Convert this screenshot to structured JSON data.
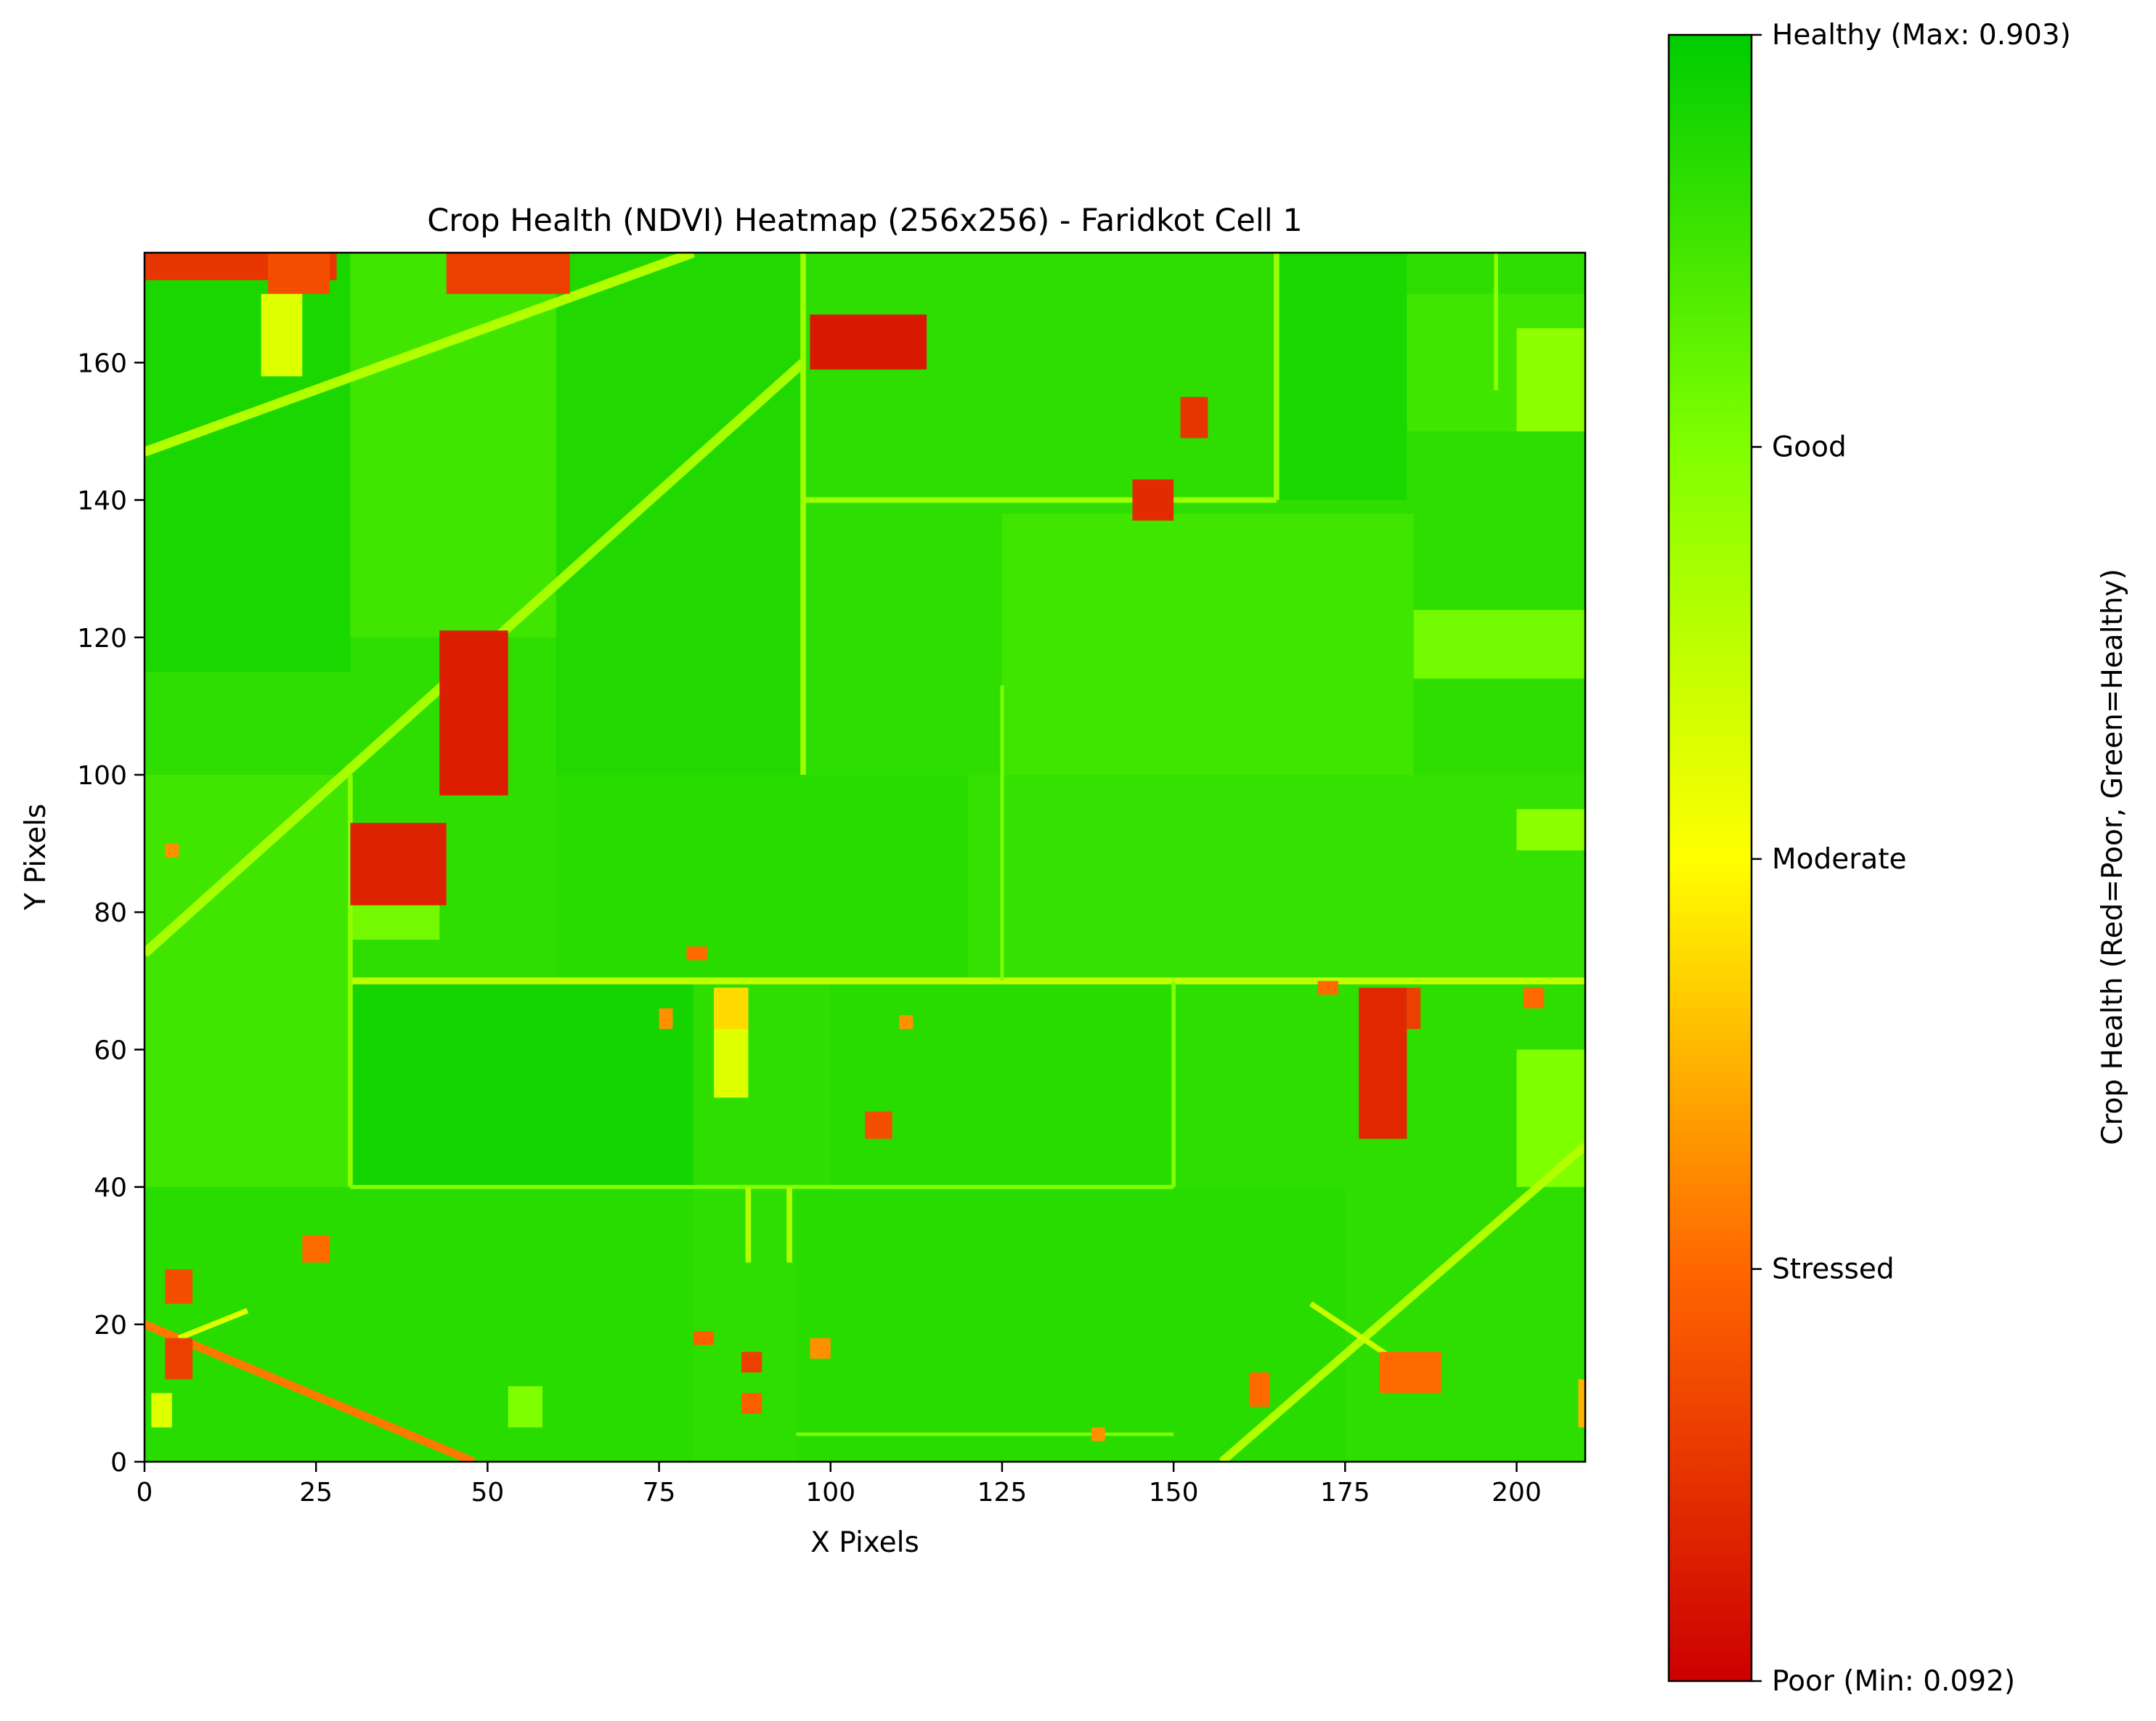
{
  "chart_data": {
    "type": "heatmap",
    "title": "Crop Health (NDVI) Heatmap (256x256) - Faridkot Cell 1",
    "xlabel": "X Pixels",
    "ylabel": "Y Pixels",
    "xlim": [
      0,
      210
    ],
    "ylim": [
      0,
      176
    ],
    "x_ticks": [
      0,
      25,
      50,
      75,
      100,
      125,
      150,
      175,
      200
    ],
    "y_ticks": [
      0,
      20,
      40,
      60,
      80,
      100,
      120,
      140,
      160
    ],
    "grid": false,
    "colormap": [
      "#cc0000",
      "#ff6600",
      "#ffff00",
      "#80ff00",
      "#00cc00"
    ],
    "value_range": [
      0.092,
      0.903
    ],
    "background_value": 0.83,
    "colorbar": {
      "label": "Crop Health (Red=Poor, Green=Healthy)",
      "ticks": [
        {
          "value": 0.092,
          "label": "Poor (Min: 0.092)"
        },
        {
          "value": 0.295,
          "label": "Stressed"
        },
        {
          "value": 0.497,
          "label": "Moderate"
        },
        {
          "value": 0.7,
          "label": "Good"
        },
        {
          "value": 0.903,
          "label": "Healthy (Max: 0.903)"
        }
      ]
    },
    "field_patches": [
      {
        "x": [
          0,
          30
        ],
        "y": [
          115,
          176
        ],
        "ndvi": 0.86
      },
      {
        "x": [
          30,
          60
        ],
        "y": [
          120,
          176
        ],
        "ndvi": 0.8
      },
      {
        "x": [
          60,
          96
        ],
        "y": [
          100,
          176
        ],
        "ndvi": 0.85
      },
      {
        "x": [
          96,
          165
        ],
        "y": [
          138,
          176
        ],
        "ndvi": 0.83
      },
      {
        "x": [
          165,
          184
        ],
        "y": [
          140,
          176
        ],
        "ndvi": 0.86
      },
      {
        "x": [
          184,
          210
        ],
        "y": [
          150,
          170
        ],
        "ndvi": 0.8
      },
      {
        "x": [
          200,
          210
        ],
        "y": [
          150,
          165
        ],
        "ndvi": 0.68
      },
      {
        "x": [
          125,
          185
        ],
        "y": [
          100,
          138
        ],
        "ndvi": 0.8
      },
      {
        "x": [
          185,
          210
        ],
        "y": [
          114,
          124
        ],
        "ndvi": 0.72
      },
      {
        "x": [
          0,
          30
        ],
        "y": [
          40,
          100
        ],
        "ndvi": 0.8
      },
      {
        "x": [
          60,
          120
        ],
        "y": [
          70,
          100
        ],
        "ndvi": 0.84
      },
      {
        "x": [
          120,
          210
        ],
        "y": [
          70,
          100
        ],
        "ndvi": 0.82
      },
      {
        "x": [
          30,
          80
        ],
        "y": [
          40,
          70
        ],
        "ndvi": 0.87
      },
      {
        "x": [
          100,
          150
        ],
        "y": [
          40,
          70
        ],
        "ndvi": 0.84
      },
      {
        "x": [
          0,
          80
        ],
        "y": [
          0,
          40
        ],
        "ndvi": 0.84
      },
      {
        "x": [
          95,
          175
        ],
        "y": [
          0,
          40
        ],
        "ndvi": 0.84
      },
      {
        "x": [
          200,
          210
        ],
        "y": [
          40,
          60
        ],
        "ndvi": 0.7
      },
      {
        "x": [
          200,
          210
        ],
        "y": [
          89,
          95
        ],
        "ndvi": 0.68
      },
      {
        "x": [
          30,
          43
        ],
        "y": [
          76,
          82
        ],
        "ndvi": 0.72
      }
    ],
    "stress_patches": [
      {
        "x": [
          97,
          114
        ],
        "y": [
          159,
          167
        ],
        "ndvi": 0.14
      },
      {
        "x": [
          43,
          53
        ],
        "y": [
          97,
          121
        ],
        "ndvi": 0.15
      },
      {
        "x": [
          30,
          44
        ],
        "y": [
          81,
          93
        ],
        "ndvi": 0.16
      },
      {
        "x": [
          144,
          150
        ],
        "y": [
          137,
          143
        ],
        "ndvi": 0.18
      },
      {
        "x": [
          151,
          155
        ],
        "y": [
          149,
          155
        ],
        "ndvi": 0.2
      },
      {
        "x": [
          177,
          184
        ],
        "y": [
          47,
          69
        ],
        "ndvi": 0.17
      },
      {
        "x": [
          184,
          186
        ],
        "y": [
          63,
          69
        ],
        "ndvi": 0.22
      },
      {
        "x": [
          0,
          28
        ],
        "y": [
          172,
          176
        ],
        "ndvi": 0.2
      },
      {
        "x": [
          18,
          27
        ],
        "y": [
          170,
          176
        ],
        "ndvi": 0.25
      },
      {
        "x": [
          44,
          62
        ],
        "y": [
          170,
          176
        ],
        "ndvi": 0.22
      },
      {
        "x": [
          3,
          7
        ],
        "y": [
          23,
          28
        ],
        "ndvi": 0.25
      },
      {
        "x": [
          23,
          27
        ],
        "y": [
          29,
          33
        ],
        "ndvi": 0.3
      },
      {
        "x": [
          3,
          7
        ],
        "y": [
          12,
          18
        ],
        "ndvi": 0.22
      },
      {
        "x": [
          105,
          109
        ],
        "y": [
          47,
          51
        ],
        "ndvi": 0.25
      },
      {
        "x": [
          97,
          100
        ],
        "y": [
          15,
          18
        ],
        "ndvi": 0.35
      },
      {
        "x": [
          87,
          90
        ],
        "y": [
          13,
          16
        ],
        "ndvi": 0.22
      },
      {
        "x": [
          87,
          90
        ],
        "y": [
          7,
          10
        ],
        "ndvi": 0.28
      },
      {
        "x": [
          80,
          83
        ],
        "y": [
          17,
          19
        ],
        "ndvi": 0.28
      },
      {
        "x": [
          161,
          164
        ],
        "y": [
          8,
          13
        ],
        "ndvi": 0.3
      },
      {
        "x": [
          180,
          189
        ],
        "y": [
          10,
          16
        ],
        "ndvi": 0.3
      },
      {
        "x": [
          201,
          204
        ],
        "y": [
          66,
          69
        ],
        "ndvi": 0.3
      },
      {
        "x": [
          79,
          82
        ],
        "y": [
          73,
          75
        ],
        "ndvi": 0.3
      },
      {
        "x": [
          75,
          77
        ],
        "y": [
          63,
          66
        ],
        "ndvi": 0.35
      },
      {
        "x": [
          110,
          112
        ],
        "y": [
          63,
          65
        ],
        "ndvi": 0.35
      },
      {
        "x": [
          138,
          140
        ],
        "y": [
          3,
          5
        ],
        "ndvi": 0.35
      },
      {
        "x": [
          3,
          5
        ],
        "y": [
          88,
          90
        ],
        "ndvi": 0.35
      },
      {
        "x": [
          171,
          174
        ],
        "y": [
          68,
          70
        ],
        "ndvi": 0.3
      },
      {
        "x": [
          209,
          210
        ],
        "y": [
          5,
          12
        ],
        "ndvi": 0.4
      },
      {
        "x": [
          83,
          88
        ],
        "y": [
          53,
          69
        ],
        "ndvi": 0.55
      },
      {
        "x": [
          83,
          88
        ],
        "y": [
          63,
          69
        ],
        "ndvi": 0.45
      },
      {
        "x": [
          17,
          23
        ],
        "y": [
          158,
          170
        ],
        "ndvi": 0.55
      },
      {
        "x": [
          1,
          4
        ],
        "y": [
          5,
          10
        ],
        "ndvi": 0.55
      },
      {
        "x": [
          53,
          58
        ],
        "y": [
          5,
          11
        ],
        "ndvi": 0.7
      }
    ],
    "linear_features": [
      {
        "from": [
          0,
          74
        ],
        "to": [
          96,
          160
        ],
        "width": 1.4,
        "ndvi": 0.64
      },
      {
        "from": [
          0,
          147
        ],
        "to": [
          80,
          176
        ],
        "width": 1.4,
        "ndvi": 0.62
      },
      {
        "from": [
          0,
          20
        ],
        "to": [
          48,
          0
        ],
        "width": 1.2,
        "ndvi": 0.32
      },
      {
        "from": [
          157,
          0
        ],
        "to": [
          210,
          46
        ],
        "width": 1.2,
        "ndvi": 0.62
      },
      {
        "from": [
          30,
          70
        ],
        "to": [
          210,
          70
        ],
        "width": 1.0,
        "ndvi": 0.6
      },
      {
        "from": [
          96,
          140
        ],
        "to": [
          165,
          140
        ],
        "width": 0.8,
        "ndvi": 0.65
      },
      {
        "from": [
          96,
          100
        ],
        "to": [
          96,
          176
        ],
        "width": 0.8,
        "ndvi": 0.65
      },
      {
        "from": [
          165,
          140
        ],
        "to": [
          165,
          176
        ],
        "width": 0.8,
        "ndvi": 0.66
      },
      {
        "from": [
          30,
          40
        ],
        "to": [
          30,
          100
        ],
        "width": 0.7,
        "ndvi": 0.68
      },
      {
        "from": [
          30,
          40
        ],
        "to": [
          150,
          40
        ],
        "width": 0.6,
        "ndvi": 0.7
      },
      {
        "from": [
          150,
          40
        ],
        "to": [
          150,
          70
        ],
        "width": 0.6,
        "ndvi": 0.7
      },
      {
        "from": [
          88,
          29
        ],
        "to": [
          88,
          40
        ],
        "width": 0.8,
        "ndvi": 0.62
      },
      {
        "from": [
          94,
          29
        ],
        "to": [
          94,
          40
        ],
        "width": 0.8,
        "ndvi": 0.62
      },
      {
        "from": [
          197,
          156
        ],
        "to": [
          197,
          176
        ],
        "width": 0.6,
        "ndvi": 0.68
      },
      {
        "from": [
          125,
          70
        ],
        "to": [
          125,
          113
        ],
        "width": 0.5,
        "ndvi": 0.7
      },
      {
        "from": [
          170,
          23
        ],
        "to": [
          185,
          13
        ],
        "width": 0.8,
        "ndvi": 0.58
      },
      {
        "from": [
          95,
          4
        ],
        "to": [
          150,
          4
        ],
        "width": 0.5,
        "ndvi": 0.7
      },
      {
        "from": [
          5,
          18
        ],
        "to": [
          15,
          22
        ],
        "width": 0.8,
        "ndvi": 0.55
      }
    ]
  }
}
